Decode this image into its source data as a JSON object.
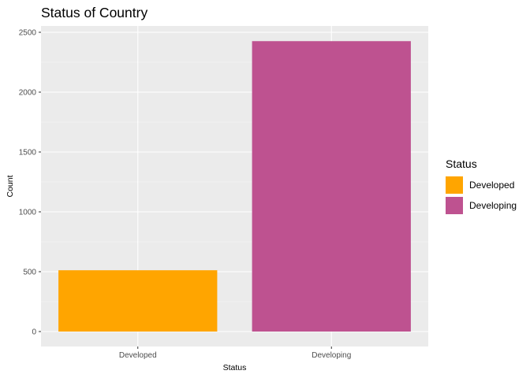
{
  "colors": {
    "panel_background": "#ebebeb",
    "grid_major": "#ffffff",
    "grid_minor": "#f5f5f5",
    "developed": "#ffa500",
    "developing": "#be5290"
  },
  "chart_data": {
    "type": "bar",
    "title": "Status of Country",
    "xlabel": "Status",
    "ylabel": "Count",
    "categories": [
      "Developed",
      "Developing"
    ],
    "values": [
      512,
      2426
    ],
    "ylim": [
      0,
      2500
    ],
    "yticks": [
      0,
      500,
      1000,
      1500,
      2000,
      2500
    ],
    "ytick_labels": [
      "0",
      "500",
      "1000",
      "1500",
      "2000",
      "2500"
    ],
    "grid": true,
    "legend": {
      "title": "Status",
      "position": "right",
      "entries": [
        {
          "label": "Developed",
          "color_key": "developed"
        },
        {
          "label": "Developing",
          "color_key": "developing"
        }
      ]
    }
  }
}
